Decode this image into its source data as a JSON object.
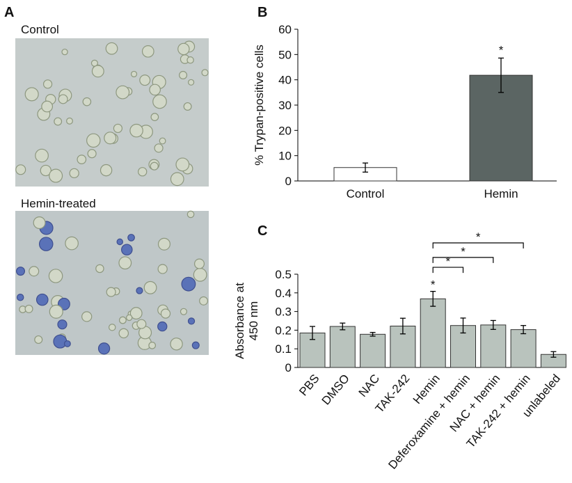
{
  "panel_a": {
    "label": "A",
    "images": [
      {
        "caption": "Control"
      },
      {
        "caption": "Hemin-treated"
      }
    ]
  },
  "chart_data": [
    {
      "type": "bar",
      "panel_label": "B",
      "ylabel": "% Trypan-positive cells",
      "categories": [
        "Control",
        "Hemin"
      ],
      "values": [
        5.3,
        41.8
      ],
      "errors": [
        1.8,
        6.8
      ],
      "colors": [
        "#ffffff",
        "#5b6563"
      ],
      "ylim": [
        0,
        60
      ],
      "yticks": [
        0,
        10,
        20,
        30,
        40,
        50,
        60
      ],
      "annotations": [
        "*"
      ]
    },
    {
      "type": "bar",
      "panel_label": "C",
      "ylabel": [
        "Absorbance at",
        "450 nm"
      ],
      "categories": [
        "PBS",
        "DMSO",
        "NAC",
        "TAK-242",
        "Hemin",
        "Deferoxamine + hemin",
        "NAC + hemin",
        "TAK-242 + hemin",
        "unlabeled"
      ],
      "values": [
        0.185,
        0.22,
        0.178,
        0.222,
        0.368,
        0.225,
        0.228,
        0.203,
        0.07
      ],
      "errors": [
        0.035,
        0.018,
        0.01,
        0.042,
        0.04,
        0.04,
        0.024,
        0.022,
        0.015
      ],
      "color": "#b9c3bd",
      "ylim": [
        0,
        0.5
      ],
      "yticks": [
        0,
        0.1,
        0.2,
        0.3,
        0.4,
        0.5
      ],
      "annotations": [
        "*",
        "*",
        "*",
        "*"
      ]
    }
  ]
}
